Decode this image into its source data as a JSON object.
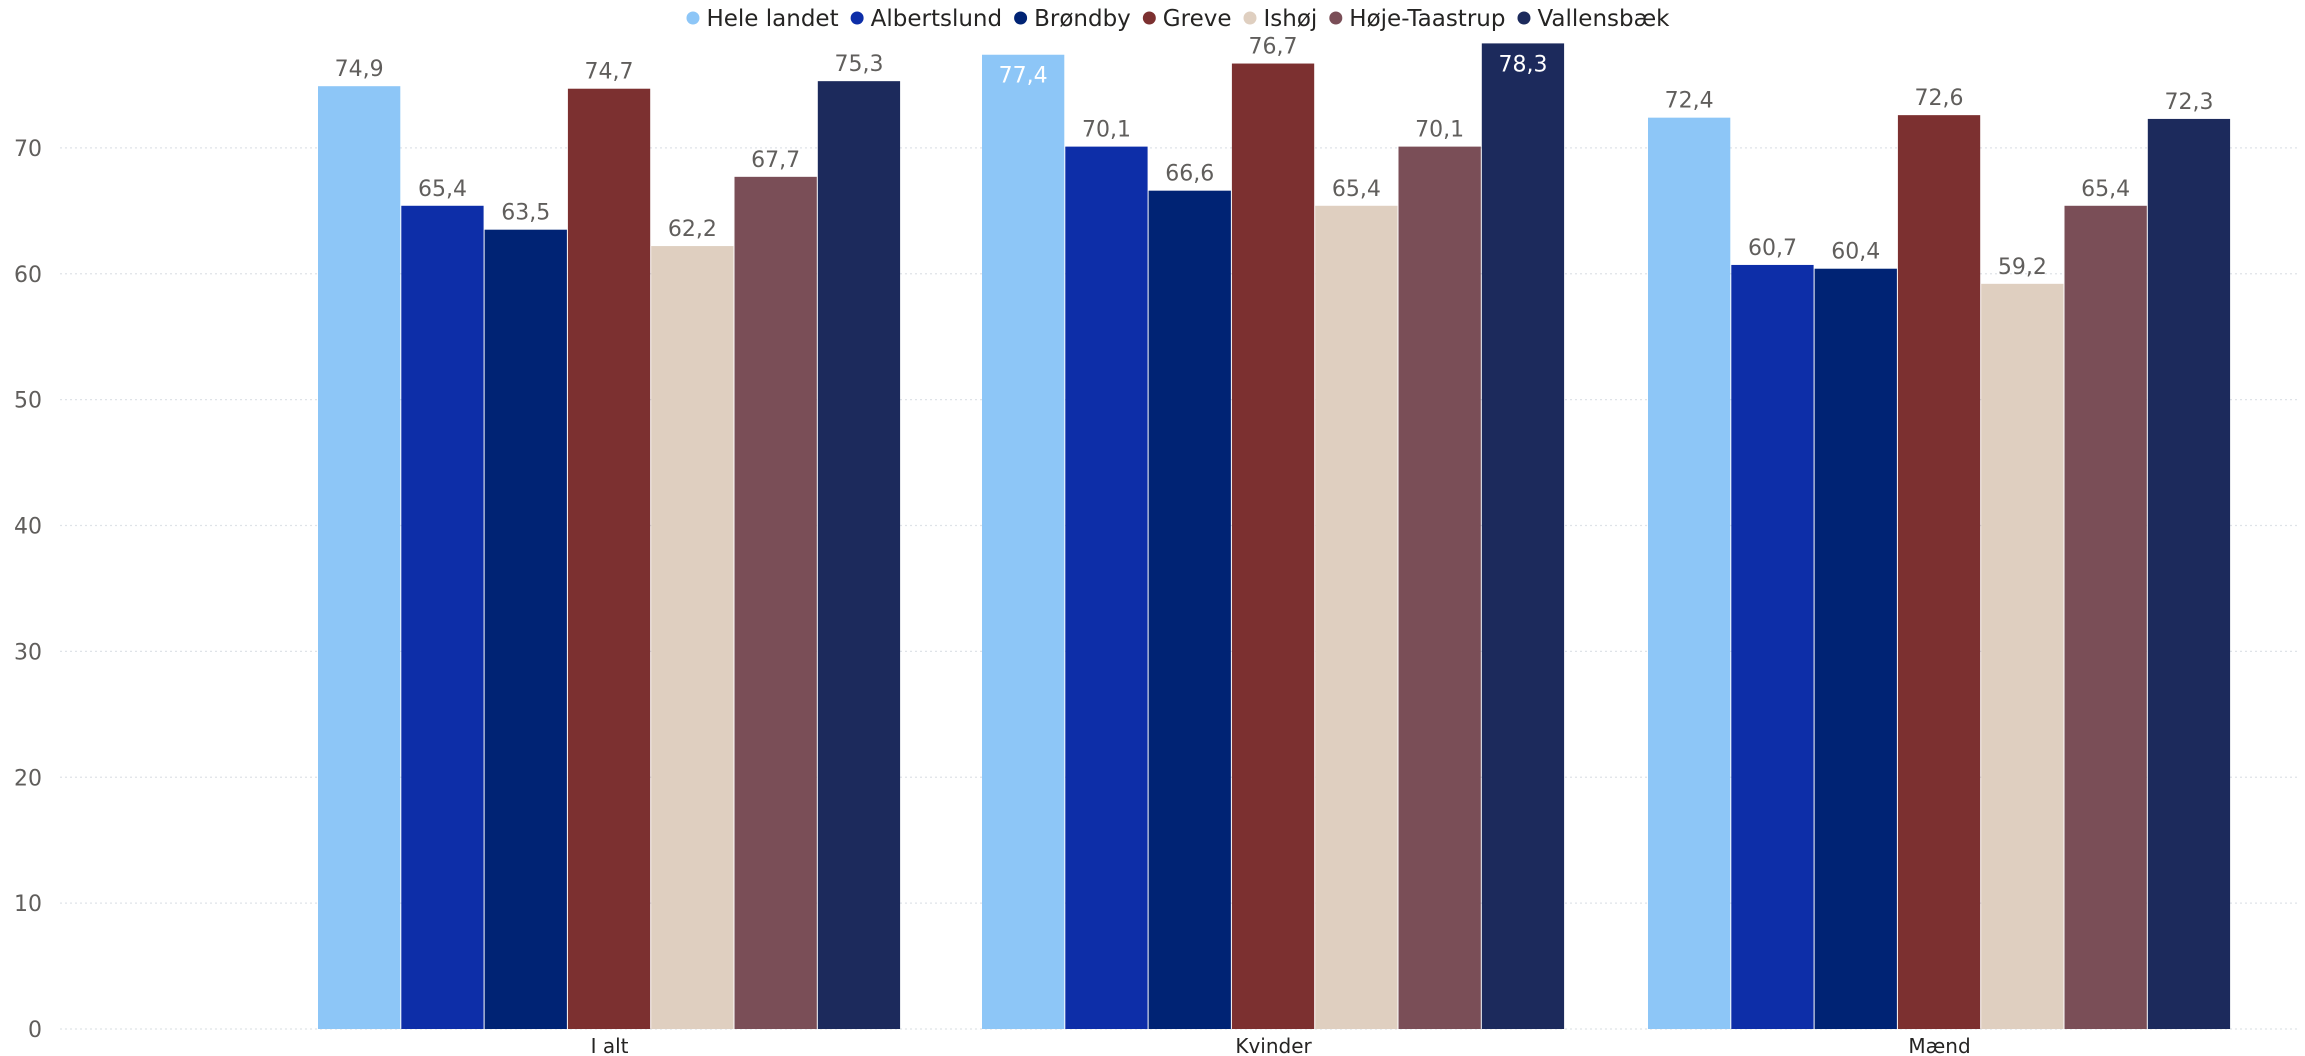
{
  "chart_data": {
    "type": "bar",
    "categories": [
      "I alt",
      "Kvinder",
      "Mænd"
    ],
    "series": [
      {
        "name": "Hele landet",
        "color": "#8DC6F7",
        "values": [
          74.9,
          77.4,
          72.4
        ],
        "labels": [
          "74,9",
          "77,4",
          "72,4"
        ]
      },
      {
        "name": "Albertslund",
        "color": "#0D2EA8",
        "values": [
          65.4,
          70.1,
          60.7
        ],
        "labels": [
          "65,4",
          "70,1",
          "60,7"
        ]
      },
      {
        "name": "Brøndby",
        "color": "#002374",
        "values": [
          63.5,
          66.6,
          60.4
        ],
        "labels": [
          "63,5",
          "66,6",
          "60,4"
        ]
      },
      {
        "name": "Greve",
        "color": "#7C3030",
        "values": [
          74.7,
          76.7,
          72.6
        ],
        "labels": [
          "74,7",
          "76,7",
          "72,6"
        ]
      },
      {
        "name": "Ishøj",
        "color": "#DFCFC0",
        "values": [
          62.2,
          65.4,
          59.2
        ],
        "labels": [
          "62,2",
          "65,4",
          "59,2"
        ]
      },
      {
        "name": "Høje-Taastrup",
        "color": "#7A4E57",
        "values": [
          67.7,
          70.1,
          65.4
        ],
        "labels": [
          "67,7",
          "70,1",
          "65,4"
        ]
      },
      {
        "name": "Vallensbæk",
        "color": "#1C2A5C",
        "values": [
          75.3,
          78.3,
          72.3
        ],
        "labels": [
          "75,3",
          "78,3",
          "72,3"
        ]
      }
    ],
    "y_ticks": [
      "0",
      "10",
      "20",
      "30",
      "40",
      "50",
      "60",
      "70"
    ],
    "ylim": [
      0,
      80
    ],
    "grid": true,
    "legend": "top-center",
    "inside_label_color": "#ffffff",
    "outside_label_color": "#605e5c"
  }
}
